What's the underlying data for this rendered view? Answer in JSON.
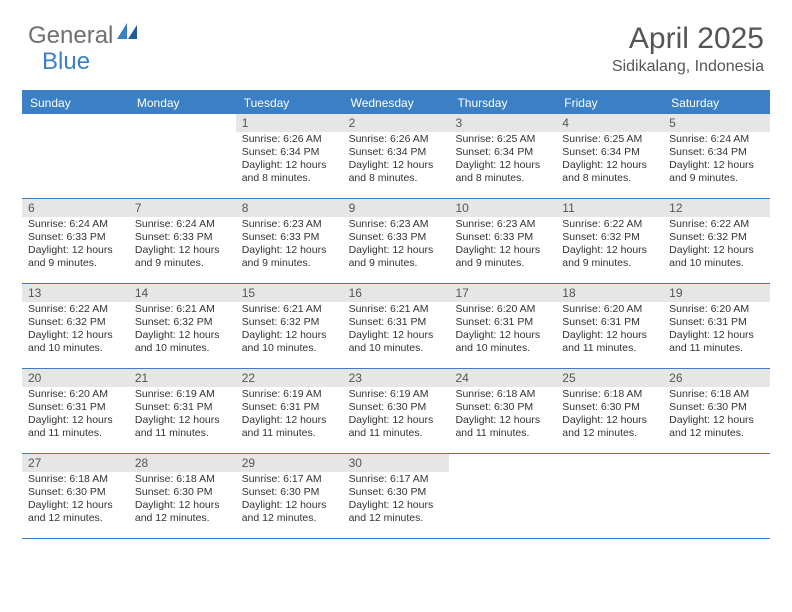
{
  "logo": {
    "text1": "General",
    "text2": "Blue"
  },
  "title": "April 2025",
  "subtitle": "Sidikalang, Indonesia",
  "colors": {
    "accent": "#3b7fc4",
    "daynum_bg": "#e6e6e6",
    "text_muted": "#555555",
    "body_text": "#333333",
    "background": "#ffffff"
  },
  "dow": [
    "Sunday",
    "Monday",
    "Tuesday",
    "Wednesday",
    "Thursday",
    "Friday",
    "Saturday"
  ],
  "weeks": [
    [
      {
        "num": "",
        "sunrise": "",
        "sunset": "",
        "daylight": ""
      },
      {
        "num": "",
        "sunrise": "",
        "sunset": "",
        "daylight": ""
      },
      {
        "num": "1",
        "sunrise": "Sunrise: 6:26 AM",
        "sunset": "Sunset: 6:34 PM",
        "daylight": "Daylight: 12 hours and 8 minutes."
      },
      {
        "num": "2",
        "sunrise": "Sunrise: 6:26 AM",
        "sunset": "Sunset: 6:34 PM",
        "daylight": "Daylight: 12 hours and 8 minutes."
      },
      {
        "num": "3",
        "sunrise": "Sunrise: 6:25 AM",
        "sunset": "Sunset: 6:34 PM",
        "daylight": "Daylight: 12 hours and 8 minutes."
      },
      {
        "num": "4",
        "sunrise": "Sunrise: 6:25 AM",
        "sunset": "Sunset: 6:34 PM",
        "daylight": "Daylight: 12 hours and 8 minutes."
      },
      {
        "num": "5",
        "sunrise": "Sunrise: 6:24 AM",
        "sunset": "Sunset: 6:34 PM",
        "daylight": "Daylight: 12 hours and 9 minutes."
      }
    ],
    [
      {
        "num": "6",
        "sunrise": "Sunrise: 6:24 AM",
        "sunset": "Sunset: 6:33 PM",
        "daylight": "Daylight: 12 hours and 9 minutes."
      },
      {
        "num": "7",
        "sunrise": "Sunrise: 6:24 AM",
        "sunset": "Sunset: 6:33 PM",
        "daylight": "Daylight: 12 hours and 9 minutes."
      },
      {
        "num": "8",
        "sunrise": "Sunrise: 6:23 AM",
        "sunset": "Sunset: 6:33 PM",
        "daylight": "Daylight: 12 hours and 9 minutes."
      },
      {
        "num": "9",
        "sunrise": "Sunrise: 6:23 AM",
        "sunset": "Sunset: 6:33 PM",
        "daylight": "Daylight: 12 hours and 9 minutes."
      },
      {
        "num": "10",
        "sunrise": "Sunrise: 6:23 AM",
        "sunset": "Sunset: 6:33 PM",
        "daylight": "Daylight: 12 hours and 9 minutes."
      },
      {
        "num": "11",
        "sunrise": "Sunrise: 6:22 AM",
        "sunset": "Sunset: 6:32 PM",
        "daylight": "Daylight: 12 hours and 9 minutes."
      },
      {
        "num": "12",
        "sunrise": "Sunrise: 6:22 AM",
        "sunset": "Sunset: 6:32 PM",
        "daylight": "Daylight: 12 hours and 10 minutes."
      }
    ],
    [
      {
        "num": "13",
        "sunrise": "Sunrise: 6:22 AM",
        "sunset": "Sunset: 6:32 PM",
        "daylight": "Daylight: 12 hours and 10 minutes."
      },
      {
        "num": "14",
        "sunrise": "Sunrise: 6:21 AM",
        "sunset": "Sunset: 6:32 PM",
        "daylight": "Daylight: 12 hours and 10 minutes."
      },
      {
        "num": "15",
        "sunrise": "Sunrise: 6:21 AM",
        "sunset": "Sunset: 6:32 PM",
        "daylight": "Daylight: 12 hours and 10 minutes."
      },
      {
        "num": "16",
        "sunrise": "Sunrise: 6:21 AM",
        "sunset": "Sunset: 6:31 PM",
        "daylight": "Daylight: 12 hours and 10 minutes."
      },
      {
        "num": "17",
        "sunrise": "Sunrise: 6:20 AM",
        "sunset": "Sunset: 6:31 PM",
        "daylight": "Daylight: 12 hours and 10 minutes."
      },
      {
        "num": "18",
        "sunrise": "Sunrise: 6:20 AM",
        "sunset": "Sunset: 6:31 PM",
        "daylight": "Daylight: 12 hours and 11 minutes."
      },
      {
        "num": "19",
        "sunrise": "Sunrise: 6:20 AM",
        "sunset": "Sunset: 6:31 PM",
        "daylight": "Daylight: 12 hours and 11 minutes."
      }
    ],
    [
      {
        "num": "20",
        "sunrise": "Sunrise: 6:20 AM",
        "sunset": "Sunset: 6:31 PM",
        "daylight": "Daylight: 12 hours and 11 minutes."
      },
      {
        "num": "21",
        "sunrise": "Sunrise: 6:19 AM",
        "sunset": "Sunset: 6:31 PM",
        "daylight": "Daylight: 12 hours and 11 minutes."
      },
      {
        "num": "22",
        "sunrise": "Sunrise: 6:19 AM",
        "sunset": "Sunset: 6:31 PM",
        "daylight": "Daylight: 12 hours and 11 minutes."
      },
      {
        "num": "23",
        "sunrise": "Sunrise: 6:19 AM",
        "sunset": "Sunset: 6:30 PM",
        "daylight": "Daylight: 12 hours and 11 minutes."
      },
      {
        "num": "24",
        "sunrise": "Sunrise: 6:18 AM",
        "sunset": "Sunset: 6:30 PM",
        "daylight": "Daylight: 12 hours and 11 minutes."
      },
      {
        "num": "25",
        "sunrise": "Sunrise: 6:18 AM",
        "sunset": "Sunset: 6:30 PM",
        "daylight": "Daylight: 12 hours and 12 minutes."
      },
      {
        "num": "26",
        "sunrise": "Sunrise: 6:18 AM",
        "sunset": "Sunset: 6:30 PM",
        "daylight": "Daylight: 12 hours and 12 minutes."
      }
    ],
    [
      {
        "num": "27",
        "sunrise": "Sunrise: 6:18 AM",
        "sunset": "Sunset: 6:30 PM",
        "daylight": "Daylight: 12 hours and 12 minutes."
      },
      {
        "num": "28",
        "sunrise": "Sunrise: 6:18 AM",
        "sunset": "Sunset: 6:30 PM",
        "daylight": "Daylight: 12 hours and 12 minutes."
      },
      {
        "num": "29",
        "sunrise": "Sunrise: 6:17 AM",
        "sunset": "Sunset: 6:30 PM",
        "daylight": "Daylight: 12 hours and 12 minutes."
      },
      {
        "num": "30",
        "sunrise": "Sunrise: 6:17 AM",
        "sunset": "Sunset: 6:30 PM",
        "daylight": "Daylight: 12 hours and 12 minutes."
      },
      {
        "num": "",
        "sunrise": "",
        "sunset": "",
        "daylight": ""
      },
      {
        "num": "",
        "sunrise": "",
        "sunset": "",
        "daylight": ""
      },
      {
        "num": "",
        "sunrise": "",
        "sunset": "",
        "daylight": ""
      }
    ]
  ]
}
